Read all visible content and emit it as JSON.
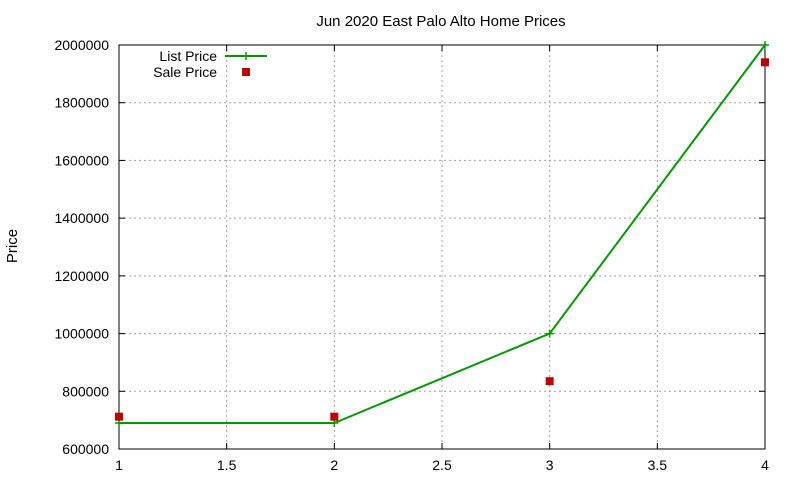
{
  "chart_data": {
    "type": "line",
    "title": "Jun 2020 East Palo Alto Home Prices",
    "xlabel": "",
    "ylabel": "Price",
    "xlim": [
      1,
      4
    ],
    "ylim": [
      600000,
      2000000
    ],
    "x_ticks": [
      1,
      1.5,
      2,
      2.5,
      3,
      3.5,
      4
    ],
    "y_ticks": [
      600000,
      800000,
      1000000,
      1200000,
      1400000,
      1600000,
      1800000,
      2000000
    ],
    "x_tick_labels": [
      "1",
      "1.5",
      "2",
      "2.5",
      "3",
      "3.5",
      "4"
    ],
    "y_tick_labels": [
      "600000",
      "800000",
      "1000000",
      "1200000",
      "1400000",
      "1600000",
      "1800000",
      "2000000"
    ],
    "grid": true,
    "legend_position": "top-left",
    "series": [
      {
        "name": "List Price",
        "style": "linespoints",
        "marker": "plus",
        "color": "#009900",
        "x": [
          1,
          2,
          3,
          4
        ],
        "y": [
          690000,
          690000,
          1000000,
          2000000
        ]
      },
      {
        "name": "Sale Price",
        "style": "points",
        "marker": "square",
        "color": "#c00000",
        "x": [
          1,
          2,
          3,
          4
        ],
        "y": [
          712000,
          712000,
          835000,
          1940000
        ]
      }
    ]
  }
}
